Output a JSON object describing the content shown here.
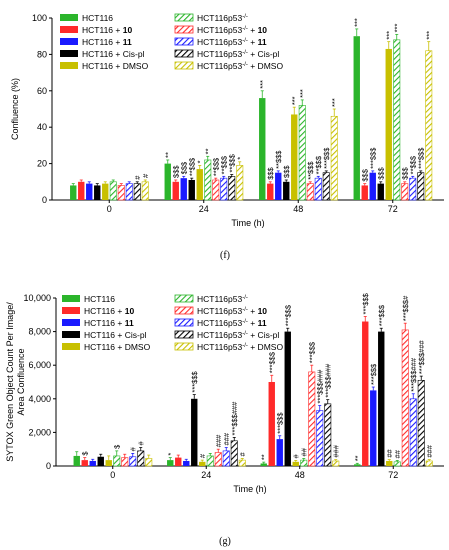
{
  "figure": {
    "panel_f": "(f)",
    "panel_g": "(g)"
  },
  "legend": [
    {
      "label": "HCT116",
      "color": "#2bb52b",
      "hatch": false
    },
    {
      "label": "HCT116 + 10",
      "color": "#ff2a2a",
      "hatch": false
    },
    {
      "label": "HCT116 + 11",
      "color": "#1a1aff",
      "hatch": false
    },
    {
      "label": "HCT116 + Cis-pl",
      "color": "#000000",
      "hatch": false
    },
    {
      "label": "HCT116 + DMSO",
      "color": "#c8c000",
      "hatch": false
    },
    {
      "label": "HCT116p53-/-",
      "color": "#2bb52b",
      "hatch": true
    },
    {
      "label": "HCT116p53-/- + 10",
      "color": "#ff2a2a",
      "hatch": true
    },
    {
      "label": "HCT116p53-/- + 11",
      "color": "#1a1aff",
      "hatch": true
    },
    {
      "label": "HCT116p53-/- + Cis-pl",
      "color": "#000000",
      "hatch": true
    },
    {
      "label": "HCT116p53-/- + DMSO",
      "color": "#c8c000",
      "hatch": true
    }
  ],
  "chart_data": [
    {
      "type": "bar",
      "panel": "(f)",
      "categories": [
        "0",
        "24",
        "48",
        "72"
      ],
      "xlabel": "Time (h)",
      "ylabel": "Confluence (%)",
      "ylim": [
        0,
        100
      ],
      "yticks": [
        "0",
        "20",
        "40",
        "60",
        "80",
        "100"
      ],
      "series": [
        {
          "name": "HCT116",
          "values": [
            8,
            20,
            56,
            90
          ],
          "errors": [
            1,
            2,
            4,
            4
          ],
          "annotations": [
            "",
            "**",
            "***",
            "***"
          ]
        },
        {
          "name": "HCT116 + 10",
          "values": [
            10,
            10,
            9,
            8
          ],
          "errors": [
            1,
            1,
            1,
            1
          ],
          "annotations": [
            "",
            "$$$",
            "$$$",
            "$$$"
          ]
        },
        {
          "name": "HCT116 + 11",
          "values": [
            9,
            12,
            15,
            15
          ],
          "errors": [
            1,
            1,
            1,
            1
          ],
          "annotations": [
            "",
            "$$$",
            "**$$$",
            "***$$$"
          ]
        },
        {
          "name": "HCT116 + Cis-pl",
          "values": [
            8,
            11,
            10,
            9
          ],
          "errors": [
            1,
            1,
            1,
            1
          ],
          "annotations": [
            "",
            "**$$$",
            "$$$",
            "$$$"
          ]
        },
        {
          "name": "HCT116 + DMSO",
          "values": [
            9,
            17,
            47,
            83
          ],
          "errors": [
            1,
            2,
            4,
            4
          ],
          "annotations": [
            "",
            "*",
            "***",
            "***"
          ]
        },
        {
          "name": "HCT116p53-/-",
          "values": [
            10,
            22,
            52,
            88
          ],
          "errors": [
            1,
            2,
            3,
            3
          ],
          "annotations": [
            "",
            "**",
            "***",
            "***"
          ]
        },
        {
          "name": "HCT116p53-/- + 10",
          "values": [
            8,
            11,
            9,
            9
          ],
          "errors": [
            1,
            1,
            1,
            1
          ],
          "annotations": [
            "",
            "**$$$",
            "**$$$",
            "$$$"
          ]
        },
        {
          "name": "HCT116p53-/- + 11",
          "values": [
            9,
            12,
            12,
            12
          ],
          "errors": [
            1,
            1,
            1,
            1
          ],
          "annotations": [
            "",
            "**$$$",
            "**$$$",
            "**$$$"
          ]
        },
        {
          "name": "HCT116p53-/- + Cis-pl",
          "values": [
            9,
            13,
            15,
            15
          ],
          "errors": [
            1,
            1,
            1,
            1
          ],
          "annotations": [
            "#",
            "**$$$",
            "***$$$",
            "***$$$"
          ]
        },
        {
          "name": "HCT116p53-/- + DMSO",
          "values": [
            10,
            19,
            46,
            82
          ],
          "errors": [
            1,
            2,
            4,
            5
          ],
          "annotations": [
            "#",
            "*",
            "***",
            "***"
          ]
        }
      ]
    },
    {
      "type": "bar",
      "panel": "(g)",
      "categories": [
        "0",
        "24",
        "48",
        "72"
      ],
      "xlabel": "Time (h)",
      "ylabel": "SYTOX Green Object Count Per Image/ Area Confluence",
      "ylim": [
        0,
        10000
      ],
      "yticks": [
        "0",
        "2,000",
        "4,000",
        "6,000",
        "8,000",
        "10,000"
      ],
      "series": [
        {
          "name": "HCT116",
          "values": [
            600,
            350,
            150,
            100
          ],
          "errors": [
            250,
            150,
            80,
            60
          ],
          "annotations": [
            "",
            "*",
            "**",
            "**"
          ]
        },
        {
          "name": "HCT116 + 10",
          "values": [
            350,
            500,
            5000,
            8600
          ],
          "errors": [
            150,
            150,
            400,
            300
          ],
          "annotations": [
            "$",
            "",
            "***$$$",
            "***$$$"
          ]
        },
        {
          "name": "HCT116 + 11",
          "values": [
            300,
            300,
            1600,
            4500
          ],
          "errors": [
            100,
            100,
            200,
            200
          ],
          "annotations": [
            "",
            "",
            "***$$$",
            "***$$$"
          ]
        },
        {
          "name": "HCT116 + Cis-pl",
          "values": [
            550,
            4000,
            8000,
            8000
          ],
          "errors": [
            150,
            250,
            200,
            200
          ],
          "annotations": [
            "",
            "***$$$",
            "***$$$",
            "***$$$"
          ]
        },
        {
          "name": "HCT116 + DMSO",
          "values": [
            350,
            250,
            250,
            300
          ],
          "errors": [
            250,
            100,
            80,
            80
          ],
          "annotations": [
            "",
            "#",
            "#",
            "##"
          ]
        },
        {
          "name": "HCT116p53-/-",
          "values": [
            600,
            600,
            350,
            250
          ],
          "errors": [
            300,
            150,
            100,
            80
          ],
          "annotations": [
            "$",
            "",
            "##",
            "##"
          ]
        },
        {
          "name": "HCT116p53-/- + 10",
          "values": [
            500,
            800,
            5600,
            8100
          ],
          "errors": [
            200,
            200,
            400,
            400
          ],
          "annotations": [
            "",
            "###",
            "***$$$",
            "***$$$#"
          ]
        },
        {
          "name": "HCT116p53-/- + 11",
          "values": [
            550,
            900,
            3300,
            4000
          ],
          "errors": [
            200,
            200,
            300,
            300
          ],
          "annotations": [
            "#",
            "###",
            "***$$$###",
            "***$$$###"
          ]
        },
        {
          "name": "HCT116p53-/- + Cis-pl",
          "values": [
            900,
            1500,
            3700,
            5100
          ],
          "errors": [
            200,
            200,
            250,
            250
          ],
          "annotations": [
            "#",
            "***$$$###",
            "***$$$###",
            "***$$$###"
          ]
        },
        {
          "name": "HCT116p53-/- + DMSO",
          "values": [
            450,
            350,
            300,
            300
          ],
          "errors": [
            200,
            100,
            80,
            80
          ],
          "annotations": [
            "",
            "#",
            "###",
            "###"
          ]
        }
      ]
    }
  ]
}
